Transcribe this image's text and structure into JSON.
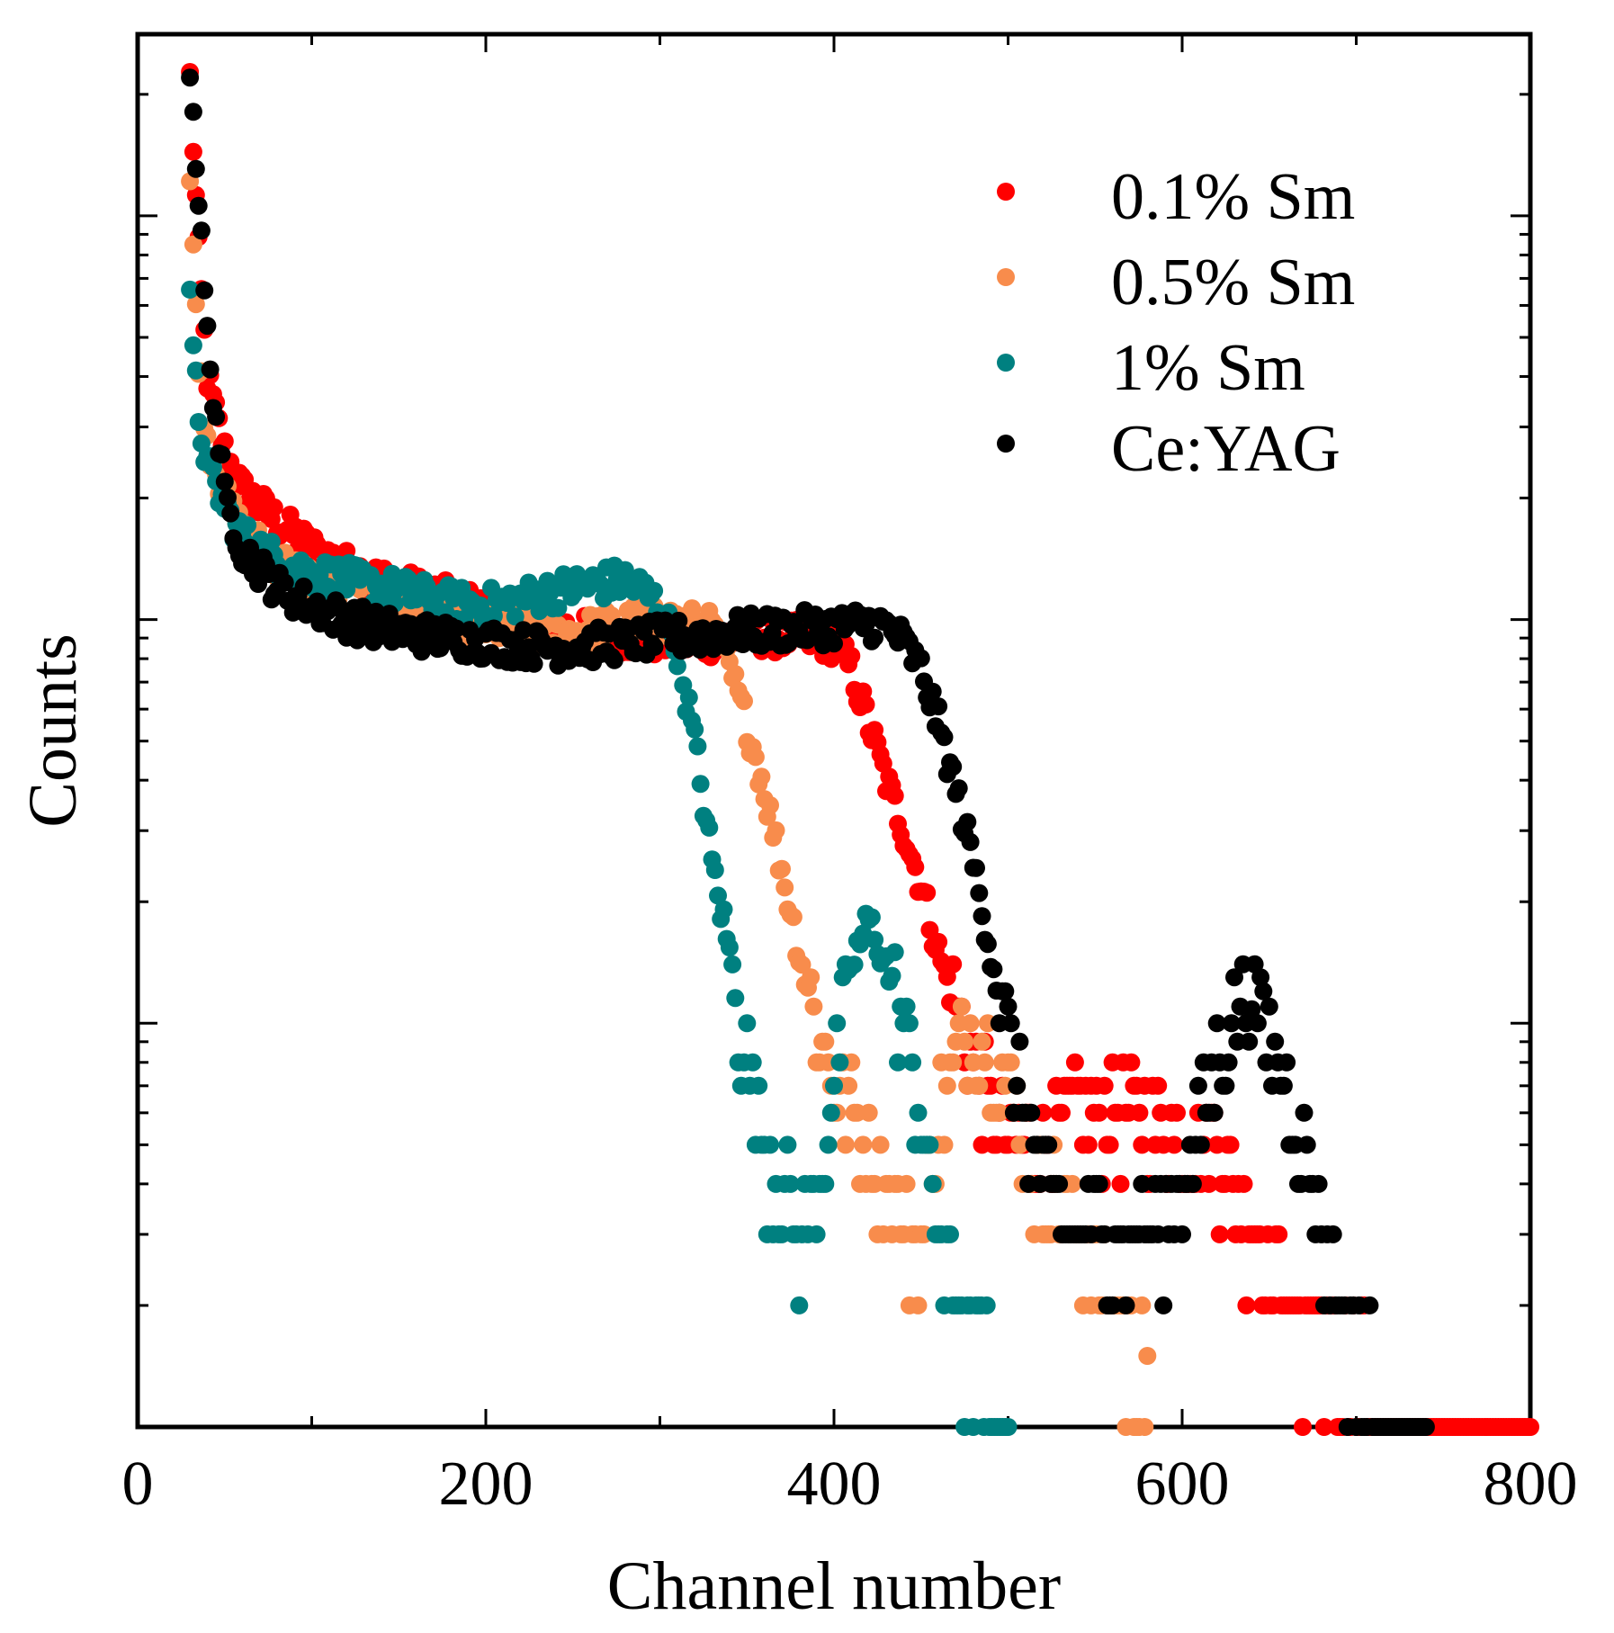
{
  "chart_data": {
    "type": "scatter",
    "title": "",
    "xlabel": "Channel number",
    "ylabel": "Counts",
    "xlim": [
      0,
      800
    ],
    "ylim_log10": [
      0,
      3.45
    ],
    "yscale": "log",
    "grid": false,
    "legend_position": "top-right",
    "x_ticks": [
      0,
      200,
      400,
      600,
      800
    ],
    "x_tick_labels": [
      "0",
      "200",
      "400",
      "600",
      "800"
    ],
    "series": [
      {
        "name": "0.1% Sm",
        "color": "#ff0000",
        "x": [
          30,
          32,
          35,
          40,
          50,
          60,
          80,
          100,
          120,
          140,
          160,
          180,
          200,
          220,
          240,
          260,
          280,
          300,
          320,
          340,
          360,
          380,
          400,
          410,
          420,
          430,
          440,
          450,
          460,
          470,
          480,
          490,
          500,
          520,
          540,
          560,
          580,
          600,
          620,
          640,
          660,
          680,
          700,
          720,
          740,
          760,
          780,
          800
        ],
        "y": [
          2200,
          1500,
          800,
          400,
          260,
          210,
          175,
          150,
          135,
          125,
          118,
          112,
          105,
          100,
          96,
          92,
          90,
          89,
          88,
          90,
          92,
          90,
          88,
          75,
          55,
          40,
          30,
          22,
          15,
          11,
          8,
          6,
          5,
          5,
          6,
          6,
          6,
          5,
          5,
          3,
          2,
          1.5,
          1.5,
          1,
          1,
          1,
          1,
          1
        ]
      },
      {
        "name": "0.5% Sm",
        "color": "#f88c4c",
        "x": [
          30,
          32,
          35,
          40,
          50,
          60,
          80,
          100,
          120,
          140,
          160,
          180,
          200,
          220,
          240,
          260,
          280,
          300,
          320,
          330,
          340,
          350,
          360,
          370,
          380,
          390,
          400,
          410,
          420,
          430,
          440,
          450,
          460,
          470,
          480,
          490,
          500,
          510,
          520,
          540,
          560,
          580
        ],
        "y": [
          1200,
          800,
          450,
          280,
          200,
          165,
          140,
          125,
          115,
          108,
          102,
          98,
          96,
          95,
          92,
          94,
          98,
          100,
          97,
          95,
          75,
          55,
          38,
          24,
          15,
          10,
          7,
          6,
          5,
          4,
          3,
          3,
          6,
          8,
          10,
          9,
          7,
          5,
          4,
          3,
          2,
          1.5
        ]
      },
      {
        "name": "1% Sm",
        "color": "#008080",
        "x": [
          30,
          32,
          35,
          40,
          50,
          60,
          80,
          100,
          120,
          140,
          160,
          180,
          200,
          220,
          240,
          260,
          280,
          290,
          300,
          310,
          320,
          330,
          340,
          350,
          360,
          370,
          380,
          390,
          400,
          410,
          420,
          430,
          440,
          450,
          460,
          470,
          480,
          500
        ],
        "y": [
          600,
          450,
          320,
          240,
          190,
          160,
          140,
          130,
          125,
          120,
          115,
          110,
          108,
          112,
          118,
          122,
          125,
          118,
          108,
          85,
          50,
          25,
          15,
          8,
          5,
          4,
          3,
          4,
          7,
          14,
          18,
          14,
          10,
          6,
          3,
          2,
          1.5,
          1
        ]
      },
      {
        "name": "Ce:YAG",
        "color": "#000000",
        "x": [
          30,
          32,
          35,
          40,
          50,
          60,
          80,
          100,
          120,
          140,
          160,
          180,
          200,
          220,
          240,
          260,
          280,
          300,
          320,
          340,
          360,
          380,
          400,
          420,
          430,
          440,
          450,
          460,
          470,
          480,
          490,
          500,
          510,
          520,
          540,
          560,
          580,
          600,
          620,
          630,
          640,
          650,
          660,
          670,
          680,
          690,
          700,
          720,
          740
        ],
        "y": [
          2400,
          1800,
          1100,
          500,
          200,
          150,
          120,
          108,
          100,
          95,
          92,
          90,
          88,
          86,
          85,
          86,
          88,
          90,
          91,
          93,
          94,
          95,
          96,
          98,
          96,
          88,
          75,
          55,
          38,
          25,
          15,
          9,
          6,
          4,
          3,
          3,
          3,
          4,
          8,
          11,
          12,
          9,
          7,
          5,
          3,
          2,
          1.5,
          1,
          1
        ]
      }
    ]
  }
}
